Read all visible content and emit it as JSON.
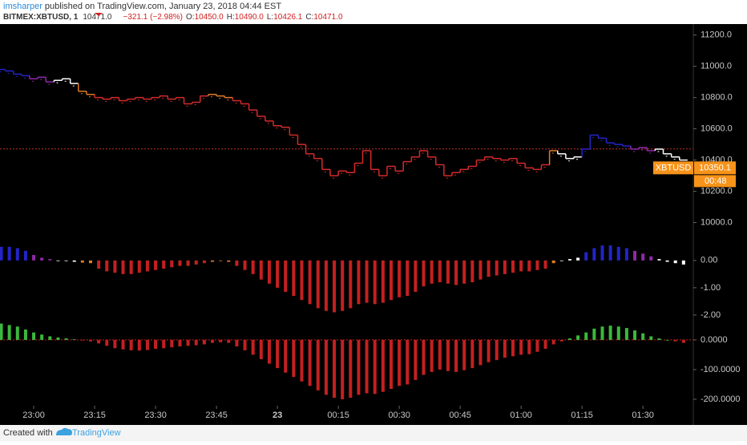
{
  "header": {
    "author": "imsharper",
    "published": "published on TradingView.com, January 23, 2018 04:44 EST",
    "symbol": "BITMEX:XBTUSD, 1",
    "last": "10471.0",
    "change": "−321.1 (−2.98%)",
    "open_label": "O:",
    "open": "10450.0",
    "high_label": "H:",
    "high": "10490.0",
    "low_label": "L:",
    "low": "10426.1",
    "close_label": "C:",
    "close": "10471.0"
  },
  "chart_data": [
    {
      "type": "step",
      "x": [
        -8,
        -6,
        -4,
        -2,
        0,
        2,
        4,
        6,
        8,
        10,
        12,
        14,
        16,
        18,
        20,
        22,
        24,
        26,
        28,
        30,
        32,
        34,
        36,
        38,
        40,
        42,
        44,
        46,
        48,
        50,
        52,
        54,
        56,
        58,
        60,
        62,
        64,
        66,
        68,
        70,
        72,
        74,
        76,
        78,
        80,
        82,
        84,
        86,
        88,
        90,
        92,
        94,
        96,
        98,
        100,
        102,
        104,
        106,
        108,
        110,
        112,
        114,
        116,
        118,
        120,
        122,
        124,
        126,
        128,
        130,
        132,
        134,
        136,
        138,
        140,
        142,
        144,
        146,
        148,
        150,
        152,
        154,
        156,
        158,
        160
      ],
      "xlim": [
        -8.3,
        162.4
      ],
      "xticks": [
        {
          "value": 0,
          "label": "23:00"
        },
        {
          "value": 15,
          "label": "23:15"
        },
        {
          "value": 30,
          "label": "23:30"
        },
        {
          "value": 45,
          "label": "23:45"
        },
        {
          "value": 60,
          "label": "23"
        },
        {
          "value": 75,
          "label": "00:15"
        },
        {
          "value": 90,
          "label": "00:30"
        },
        {
          "value": 105,
          "label": "00:45"
        },
        {
          "value": 120,
          "label": "01:00"
        },
        {
          "value": 135,
          "label": "01:15"
        },
        {
          "value": 150,
          "label": "01:30"
        }
      ],
      "ylim": [
        9880,
        11260
      ],
      "yticks": [
        {
          "value": 10000,
          "label": "10000.0"
        },
        {
          "value": 10200,
          "label": "10200.0"
        },
        {
          "value": 10400,
          "label": "10400.0"
        },
        {
          "value": 10600,
          "label": "10600.0"
        },
        {
          "value": 10800,
          "label": "10800.0"
        },
        {
          "value": 11000,
          "label": "11000.0"
        },
        {
          "value": 11200,
          "label": "11200.0"
        }
      ],
      "values": [
        10980,
        10970,
        10950,
        10940,
        10920,
        10930,
        10900,
        10910,
        10920,
        10890,
        10840,
        10820,
        10800,
        10790,
        10800,
        10780,
        10790,
        10800,
        10790,
        10800,
        10810,
        10790,
        10800,
        10760,
        10770,
        10810,
        10820,
        10810,
        10800,
        10780,
        10760,
        10720,
        10680,
        10650,
        10620,
        10610,
        10560,
        10500,
        10440,
        10410,
        10340,
        10300,
        10330,
        10320,
        10380,
        10460,
        10340,
        10300,
        10360,
        10330,
        10390,
        10420,
        10460,
        10420,
        10370,
        10300,
        10320,
        10340,
        10360,
        10400,
        10420,
        10410,
        10400,
        10410,
        10380,
        10350,
        10340,
        10370,
        10460,
        10440,
        10410,
        10420,
        10470,
        10560,
        10540,
        10510,
        10500,
        10490,
        10470,
        10480,
        10460,
        10470,
        10440,
        10420,
        10400
      ],
      "colors": [
        "#2424c8",
        "#2424c8",
        "#2424c8",
        "#2424c8",
        "#8e2aa8",
        "#8e2aa8",
        "#8e2aa8",
        "#ffffff",
        "#ffffff",
        "#ffffff",
        "#e07b24",
        "#e07b24",
        "#d42a2a",
        "#d42a2a",
        "#d42a2a",
        "#d42a2a",
        "#d42a2a",
        "#d42a2a",
        "#d42a2a",
        "#d42a2a",
        "#d42a2a",
        "#d42a2a",
        "#d42a2a",
        "#d42a2a",
        "#d42a2a",
        "#d42a2a",
        "#e07b24",
        "#e07b24",
        "#e07b24",
        "#d42a2a",
        "#d42a2a",
        "#d42a2a",
        "#d42a2a",
        "#d42a2a",
        "#d42a2a",
        "#d42a2a",
        "#d42a2a",
        "#d42a2a",
        "#d42a2a",
        "#d42a2a",
        "#d42a2a",
        "#d42a2a",
        "#d42a2a",
        "#d42a2a",
        "#d42a2a",
        "#d42a2a",
        "#d42a2a",
        "#d42a2a",
        "#d42a2a",
        "#d42a2a",
        "#d42a2a",
        "#d42a2a",
        "#d42a2a",
        "#d42a2a",
        "#d42a2a",
        "#d42a2a",
        "#d42a2a",
        "#d42a2a",
        "#d42a2a",
        "#d42a2a",
        "#d42a2a",
        "#d42a2a",
        "#d42a2a",
        "#d42a2a",
        "#d42a2a",
        "#d42a2a",
        "#d42a2a",
        "#d42a2a",
        "#e07b24",
        "#ffffff",
        "#ffffff",
        "#ffffff",
        "#2424c8",
        "#2424c8",
        "#2424c8",
        "#2424c8",
        "#2424c8",
        "#2424c8",
        "#8e2aa8",
        "#8e2aa8",
        "#8e2aa8",
        "#ffffff",
        "#ffffff",
        "#ffffff",
        "#ffffff"
      ],
      "reference_line": 10471,
      "reference_color": "#c03030",
      "price_tag": {
        "name": "XBTUSD",
        "value": 10350.1,
        "label": "10350.1",
        "countdown": "00:48",
        "color": "#f7931a"
      }
    },
    {
      "type": "histogram",
      "ylim": [
        -2.15,
        0.7
      ],
      "yticks": [
        {
          "value": 0,
          "label": "0.00"
        },
        {
          "value": -1,
          "label": "-1.00"
        },
        {
          "value": -2,
          "label": "-2.00"
        }
      ],
      "values": [
        0.5,
        0.5,
        0.45,
        0.35,
        0.2,
        0.1,
        0.05,
        0,
        -0.02,
        -0.05,
        -0.08,
        -0.1,
        -0.3,
        -0.4,
        -0.45,
        -0.5,
        -0.5,
        -0.45,
        -0.4,
        -0.35,
        -0.3,
        -0.25,
        -0.2,
        -0.2,
        -0.15,
        -0.1,
        -0.05,
        -0.02,
        -0.05,
        -0.2,
        -0.35,
        -0.5,
        -0.7,
        -0.85,
        -1,
        -1.15,
        -1.3,
        -1.45,
        -1.6,
        -1.75,
        -1.85,
        -1.9,
        -1.85,
        -1.75,
        -1.6,
        -1.55,
        -1.6,
        -1.55,
        -1.45,
        -1.35,
        -1.3,
        -1.15,
        -0.95,
        -0.85,
        -0.8,
        -0.85,
        -0.9,
        -0.85,
        -0.8,
        -0.7,
        -0.6,
        -0.55,
        -0.5,
        -0.45,
        -0.4,
        -0.4,
        -0.35,
        -0.3,
        -0.1,
        0,
        0.05,
        0.1,
        0.3,
        0.45,
        0.55,
        0.55,
        0.5,
        0.45,
        0.35,
        0.25,
        0.15,
        0.05,
        -0.05,
        -0.1,
        -0.15
      ],
      "colors": [
        "#2424c8",
        "#2424c8",
        "#2424c8",
        "#2424c8",
        "#8e2aa8",
        "#8e2aa8",
        "#8e2aa8",
        "#ffffff",
        "#ffffff",
        "#ffffff",
        "#e07b24",
        "#e07b24",
        "#c42020",
        "#c42020",
        "#c42020",
        "#c42020",
        "#c42020",
        "#c42020",
        "#c42020",
        "#c42020",
        "#c42020",
        "#c42020",
        "#c42020",
        "#c42020",
        "#c42020",
        "#c42020",
        "#e07b24",
        "#e07b24",
        "#e07b24",
        "#c42020",
        "#c42020",
        "#c42020",
        "#c42020",
        "#c42020",
        "#c42020",
        "#c42020",
        "#c42020",
        "#c42020",
        "#c42020",
        "#c42020",
        "#c42020",
        "#c42020",
        "#c42020",
        "#c42020",
        "#c42020",
        "#c42020",
        "#c42020",
        "#c42020",
        "#c42020",
        "#c42020",
        "#c42020",
        "#c42020",
        "#c42020",
        "#c42020",
        "#c42020",
        "#c42020",
        "#c42020",
        "#c42020",
        "#c42020",
        "#c42020",
        "#c42020",
        "#c42020",
        "#c42020",
        "#c42020",
        "#c42020",
        "#c42020",
        "#c42020",
        "#c42020",
        "#e07b24",
        "#ffffff",
        "#ffffff",
        "#ffffff",
        "#2424c8",
        "#2424c8",
        "#2424c8",
        "#2424c8",
        "#2424c8",
        "#2424c8",
        "#8e2aa8",
        "#8e2aa8",
        "#8e2aa8",
        "#ffffff",
        "#ffffff",
        "#ffffff",
        "#ffffff"
      ]
    },
    {
      "type": "histogram",
      "ylim": [
        -246,
        70
      ],
      "yticks": [
        {
          "value": 0,
          "label": "0.0000"
        },
        {
          "value": -100,
          "label": "-100.0000"
        },
        {
          "value": -200,
          "label": "-200.0000"
        }
      ],
      "values": [
        55,
        50,
        45,
        35,
        25,
        18,
        12,
        8,
        5,
        2,
        -2,
        -5,
        -12,
        -20,
        -28,
        -32,
        -35,
        -36,
        -34,
        -30,
        -28,
        -25,
        -22,
        -20,
        -18,
        -15,
        -10,
        -8,
        -10,
        -22,
        -35,
        -50,
        -65,
        -80,
        -95,
        -110,
        -125,
        -140,
        -155,
        -170,
        -185,
        -195,
        -200,
        -195,
        -185,
        -180,
        -182,
        -175,
        -165,
        -155,
        -150,
        -135,
        -118,
        -108,
        -100,
        -105,
        -108,
        -102,
        -95,
        -85,
        -75,
        -68,
        -60,
        -55,
        -50,
        -48,
        -40,
        -30,
        -15,
        -5,
        5,
        15,
        25,
        38,
        45,
        48,
        45,
        40,
        32,
        22,
        12,
        5,
        0,
        -5,
        -10
      ],
      "color_up": "#3cb83c",
      "color_down": "#c42020",
      "baseline_color": "#c42020"
    }
  ],
  "footer": {
    "created": "Created with",
    "brand": "TradingView"
  }
}
